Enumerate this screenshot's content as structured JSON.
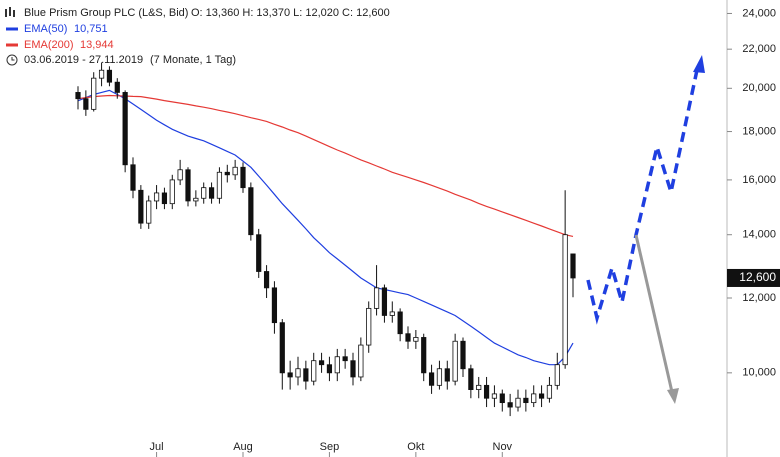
{
  "chart_data": {
    "type": "candlestick",
    "title": "Blue Prism Group PLC (L&S, Bid)",
    "quote": "O: 13,360  H: 13,370  L: 12,020  C: 12,600",
    "date_range": "03.06.2019 - 27.11.2019",
    "period": "(7 Monate, 1 Tag)",
    "last_price_label": "12,600",
    "candle_color": "#111111",
    "log_scale": true,
    "ylim": [
      8700,
      24800
    ],
    "yticks": [
      {
        "value": 10000,
        "label": "10,000"
      },
      {
        "value": 12000,
        "label": "12,000"
      },
      {
        "value": 14000,
        "label": "14,000"
      },
      {
        "value": 16000,
        "label": "16,000"
      },
      {
        "value": 18000,
        "label": "18,000"
      },
      {
        "value": 20000,
        "label": "20,000"
      },
      {
        "value": 22000,
        "label": "22,000"
      },
      {
        "value": 24000,
        "label": "24,000"
      }
    ],
    "categories": [
      null,
      null,
      null,
      null,
      null,
      null,
      null,
      null,
      null,
      null,
      "Jul",
      null,
      null,
      null,
      null,
      null,
      null,
      null,
      null,
      null,
      null,
      "Aug",
      null,
      null,
      null,
      null,
      null,
      null,
      null,
      null,
      null,
      null,
      "Sep",
      null,
      null,
      null,
      null,
      null,
      null,
      null,
      null,
      null,
      null,
      "Okt",
      null,
      null,
      null,
      null,
      null,
      null,
      null,
      null,
      null,
      null,
      "Nov",
      null,
      null,
      null,
      null,
      null,
      null,
      null,
      null,
      null
    ],
    "open": [
      19800,
      19500,
      19000,
      20500,
      20900,
      20300,
      19800,
      16600,
      15600,
      14400,
      15200,
      15500,
      15100,
      16000,
      16400,
      15200,
      15300,
      15700,
      15300,
      16300,
      16200,
      16500,
      15700,
      14000,
      12800,
      12300,
      11300,
      10000,
      9900,
      10100,
      9800,
      10300,
      10200,
      10000,
      10400,
      10300,
      9900,
      10700,
      11700,
      12300,
      11500,
      11600,
      11000,
      10800,
      10900,
      10000,
      9700,
      10100,
      9800,
      10800,
      10100,
      9600,
      9700,
      9400,
      9500,
      9300,
      9200,
      9400,
      9300,
      9500,
      9400,
      9700,
      10200,
      13360
    ],
    "high": [
      20100,
      19900,
      20800,
      21300,
      21100,
      20500,
      19900,
      16900,
      15800,
      15400,
      15800,
      15700,
      16200,
      16800,
      16500,
      15600,
      15900,
      15900,
      16500,
      16600,
      16800,
      16700,
      15900,
      14200,
      13000,
      12500,
      11400,
      10300,
      10400,
      10300,
      10500,
      10500,
      10400,
      10600,
      10600,
      10500,
      10900,
      11900,
      13000,
      12400,
      11900,
      11700,
      11200,
      11100,
      11000,
      10200,
      10300,
      10300,
      11000,
      10900,
      10200,
      9900,
      9900,
      9700,
      9600,
      9500,
      9600,
      9600,
      9700,
      9700,
      9900,
      10500,
      15600,
      13370
    ],
    "low": [
      19000,
      18700,
      18900,
      20100,
      20100,
      19500,
      16300,
      15300,
      14200,
      14200,
      14900,
      14900,
      14900,
      15800,
      15000,
      15000,
      15100,
      15100,
      15100,
      15900,
      16000,
      15500,
      13800,
      12600,
      12000,
      11000,
      9600,
      9600,
      9700,
      9600,
      9700,
      10000,
      9800,
      9800,
      10100,
      9700,
      9800,
      10500,
      11500,
      11300,
      11300,
      10800,
      10600,
      10600,
      9800,
      9500,
      9600,
      9600,
      9700,
      9900,
      9400,
      9400,
      9200,
      9200,
      9100,
      9000,
      9100,
      9100,
      9200,
      9200,
      9300,
      9600,
      10100,
      12020
    ],
    "close": [
      19500,
      19000,
      20500,
      20900,
      20300,
      19800,
      16600,
      15600,
      14400,
      15200,
      15500,
      15100,
      16000,
      16400,
      15200,
      15300,
      15700,
      15300,
      16300,
      16200,
      16500,
      15700,
      14000,
      12800,
      12300,
      11300,
      10000,
      9900,
      10100,
      9800,
      10300,
      10200,
      10000,
      10400,
      10300,
      9900,
      10700,
      11700,
      12300,
      11500,
      11600,
      11000,
      10800,
      10900,
      10000,
      9700,
      10100,
      9800,
      10800,
      10100,
      9600,
      9700,
      9400,
      9500,
      9300,
      9200,
      9400,
      9300,
      9500,
      9400,
      9700,
      10200,
      14000,
      12600
    ],
    "series": [
      {
        "name": "EMA(50)",
        "color": "#1f3fe0",
        "legend_value": "10,751",
        "values": [
          19400,
          19550,
          19700,
          19800,
          19900,
          19700,
          19500,
          19250,
          19000,
          18750,
          18500,
          18300,
          18100,
          17950,
          17800,
          17700,
          17600,
          17450,
          17300,
          17150,
          17000,
          16750,
          16500,
          16150,
          15800,
          15450,
          15100,
          14800,
          14500,
          14200,
          13900,
          13650,
          13400,
          13200,
          13000,
          12800,
          12600,
          12450,
          12300,
          12250,
          12200,
          12150,
          12100,
          12000,
          11900,
          11800,
          11700,
          11600,
          11500,
          11350,
          11200,
          11050,
          10900,
          10750,
          10650,
          10550,
          10450,
          10380,
          10300,
          10250,
          10200,
          10200,
          10400,
          10751
        ]
      },
      {
        "name": "EMA(200)",
        "color": "#e53935",
        "legend_value": "13,944",
        "values": [
          19500,
          19550,
          19600,
          19630,
          19650,
          19640,
          19630,
          19610,
          19600,
          19540,
          19480,
          19410,
          19350,
          19290,
          19230,
          19160,
          19100,
          19030,
          18950,
          18880,
          18800,
          18710,
          18620,
          18540,
          18450,
          18320,
          18200,
          18070,
          17950,
          17800,
          17650,
          17500,
          17350,
          17210,
          17080,
          16940,
          16800,
          16680,
          16550,
          16430,
          16300,
          16200,
          16100,
          16000,
          15900,
          15790,
          15680,
          15570,
          15450,
          15340,
          15230,
          15110,
          15000,
          14900,
          14800,
          14700,
          14600,
          14500,
          14400,
          14300,
          14200,
          14100,
          14000,
          13944
        ]
      }
    ]
  }
}
